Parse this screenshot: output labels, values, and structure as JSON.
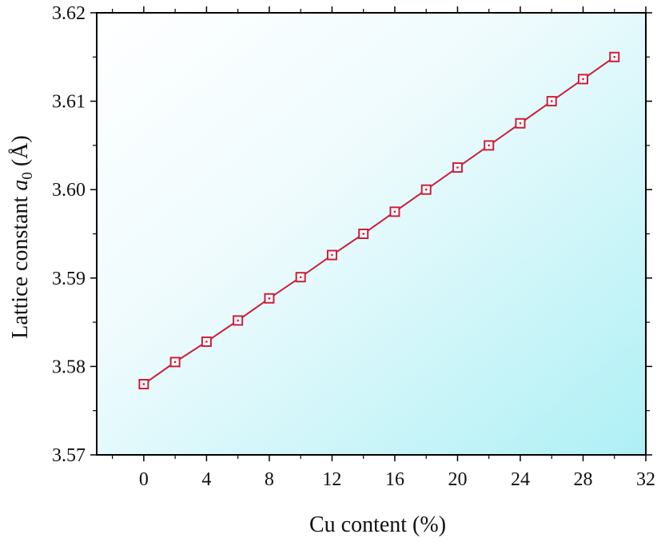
{
  "chart_data": {
    "type": "line",
    "title": "",
    "xlabel": "Cu content (%)",
    "ylabel_text": "Lattice constant ",
    "ylabel_symbol": "a",
    "ylabel_subscript": "0",
    "ylabel_unit": " (Å)",
    "xlim": [
      -3,
      32
    ],
    "ylim": [
      3.57,
      3.62
    ],
    "xticks": [
      0,
      4,
      8,
      12,
      16,
      20,
      24,
      28,
      32
    ],
    "xtick_labels": [
      "0",
      "4",
      "8",
      "12",
      "16",
      "20",
      "24",
      "28",
      "32"
    ],
    "yticks": [
      3.57,
      3.58,
      3.59,
      3.6,
      3.61,
      3.62
    ],
    "ytick_labels": [
      "3.57",
      "3.58",
      "3.59",
      "3.60",
      "3.61",
      "3.62"
    ],
    "grid": false,
    "legend": "none",
    "series": [
      {
        "x": [
          0,
          2,
          4,
          6,
          8,
          10,
          12,
          14,
          16,
          18,
          20,
          22,
          24,
          26,
          28,
          30
        ],
        "y": [
          3.578,
          3.5805,
          3.5828,
          3.5852,
          3.5877,
          3.5901,
          3.5926,
          3.595,
          3.5975,
          3.6,
          3.6025,
          3.605,
          3.6075,
          3.61,
          3.6125,
          3.615
        ],
        "color": "#cc1f3a",
        "marker": "hollow-square-with-center-dot"
      }
    ],
    "background_gradient": [
      "#ffffff",
      "#aef0f5"
    ]
  }
}
